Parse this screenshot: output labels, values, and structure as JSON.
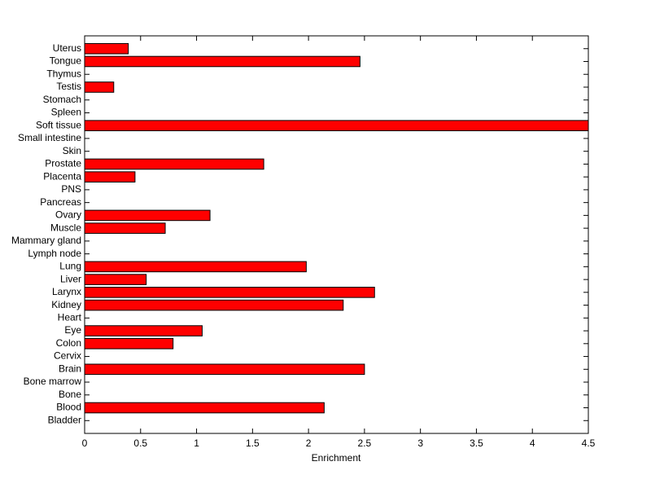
{
  "chart_data": {
    "type": "barh",
    "xlabel": "Enrichment",
    "categories": [
      "Bladder",
      "Blood",
      "Bone",
      "Bone marrow",
      "Brain",
      "Cervix",
      "Colon",
      "Eye",
      "Heart",
      "Kidney",
      "Larynx",
      "Liver",
      "Lung",
      "Lymph node",
      "Mammary gland",
      "Muscle",
      "Ovary",
      "Pancreas",
      "PNS",
      "Placenta",
      "Prostate",
      "Skin",
      "Small intestine",
      "Soft tissue",
      "Spleen",
      "Stomach",
      "Testis",
      "Thymus",
      "Tongue",
      "Uterus"
    ],
    "values": [
      0,
      2.14,
      0,
      0,
      2.5,
      0,
      0.79,
      1.05,
      0,
      2.31,
      2.59,
      0.55,
      1.98,
      0,
      0,
      0.72,
      1.12,
      0,
      0,
      0.45,
      1.6,
      0,
      0,
      4.5,
      0,
      0,
      0.26,
      0,
      2.46,
      0.39
    ],
    "color": "#ff0000",
    "xlim": [
      0,
      4.5
    ],
    "xticks": [
      0,
      0.5,
      1,
      1.5,
      2,
      2.5,
      3,
      3.5,
      4,
      4.5
    ],
    "grid": false
  }
}
